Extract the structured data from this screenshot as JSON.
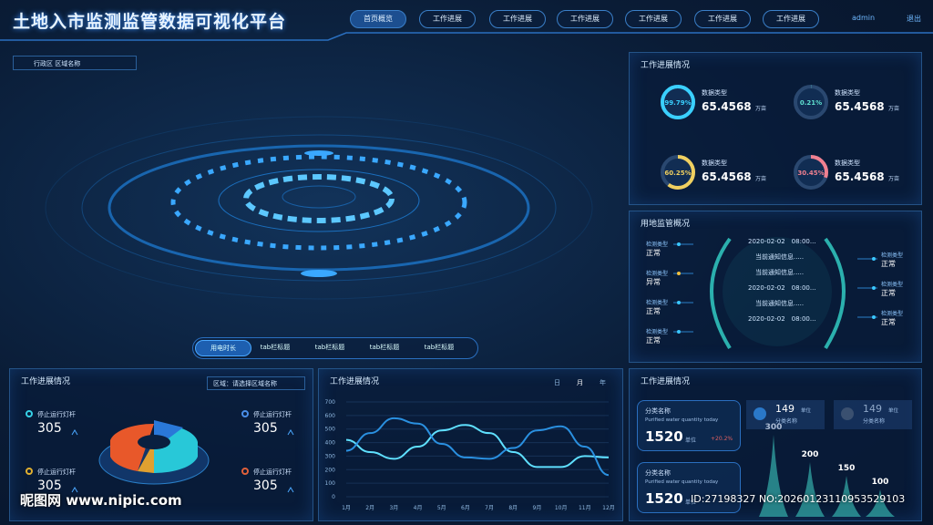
{
  "header": {
    "title": "土地入市监测监管数据可视化平台",
    "nav": [
      "首页概览",
      "工作进展",
      "工作进展",
      "工作进展",
      "工作进展",
      "工作进展",
      "工作进展"
    ],
    "user": "admin",
    "logout": "退出"
  },
  "region_select": "行政区  区域名称",
  "tabs": [
    "用电时长",
    "tab栏标题",
    "tab栏标题",
    "tab栏标题",
    "tab栏标题"
  ],
  "progress_panel": {
    "title": "工作进展情况",
    "items": [
      {
        "pct": 99.79,
        "pct_label": "99.79%",
        "type": "数据类型",
        "value": 65.4568,
        "unit": "万亩",
        "color": "#3ad0ff"
      },
      {
        "pct": 0.21,
        "pct_label": "0.21%",
        "type": "数据类型",
        "value": 65.4568,
        "unit": "万亩",
        "color": "#5fe0d0"
      },
      {
        "pct": 60.25,
        "pct_label": "60.25%",
        "type": "数据类型",
        "value": 65.4568,
        "unit": "万亩",
        "color": "#f0d060"
      },
      {
        "pct": 30.45,
        "pct_label": "30.45%",
        "type": "数据类型",
        "value": 65.4568,
        "unit": "万亩",
        "color": "#f08090"
      }
    ]
  },
  "land_panel": {
    "title": "用地监管概况",
    "left": [
      {
        "type": "检测类型",
        "status": "正常"
      },
      {
        "type": "检测类型",
        "status": "异常"
      },
      {
        "type": "检测类型",
        "status": "正常"
      },
      {
        "type": "检测类型",
        "status": "正常"
      }
    ],
    "right": [
      {
        "type": "检测类型",
        "status": "正常"
      },
      {
        "type": "检测类型",
        "status": "正常"
      },
      {
        "type": "检测类型",
        "status": "正常"
      }
    ],
    "timeline": [
      "2020-02-02　08:00...",
      "当前通知信息.....",
      "当前通知信息.....",
      "2020-02-02　08:00...",
      "当前通知信息.....",
      "2020-02-02　08:00..."
    ]
  },
  "lamp_panel": {
    "title": "工作进展情况",
    "select": "区域：请选择区域名称",
    "items": [
      {
        "label": "停止运行灯杆",
        "value": 305,
        "color": "#36d1e6"
      },
      {
        "label": "停止运行灯杆",
        "value": 305,
        "color": "#4a8ee8"
      },
      {
        "label": "停止运行灯杆",
        "value": 305,
        "color": "#e0b030"
      },
      {
        "label": "停止运行灯杆",
        "value": 305,
        "color": "#e0603a"
      }
    ]
  },
  "line_chart": {
    "type": "line",
    "title": "工作进展情况",
    "periods": [
      "日",
      "月",
      "年"
    ],
    "categories": [
      "1月",
      "2月",
      "3月",
      "4月",
      "5月",
      "6月",
      "7月",
      "8月",
      "9月",
      "10月",
      "11月",
      "12月"
    ],
    "series": [
      {
        "color": "#5fe0ff",
        "values": [
          420,
          330,
          280,
          370,
          490,
          530,
          470,
          330,
          220,
          220,
          300,
          290
        ]
      },
      {
        "color": "#2a90e0",
        "values": [
          340,
          470,
          580,
          540,
          390,
          290,
          280,
          360,
          490,
          520,
          370,
          160
        ]
      }
    ],
    "ylim": [
      0,
      700
    ],
    "yticks": [
      0,
      100,
      200,
      300,
      400,
      500,
      600,
      700
    ]
  },
  "water_panel": {
    "title": "工作进展情况",
    "cards": [
      {
        "name": "分类名称",
        "sub": "Purified water quantity today",
        "value": 1520,
        "unit": "单位",
        "change": "+20.2%"
      },
      {
        "name": "分类名称",
        "sub": "Purified water quantity today",
        "value": 1520,
        "unit": "单位"
      }
    ],
    "stats": [
      {
        "value": 149,
        "unit": "单位",
        "name": "分类名称"
      },
      {
        "value": 149,
        "unit": "单位",
        "name": "分类名称"
      }
    ],
    "peaks": [
      300,
      200,
      150,
      100
    ]
  },
  "watermark": {
    "left": "昵图网 www.nipic.com",
    "right": "ID:27198327 NO:20260123110953529103"
  }
}
